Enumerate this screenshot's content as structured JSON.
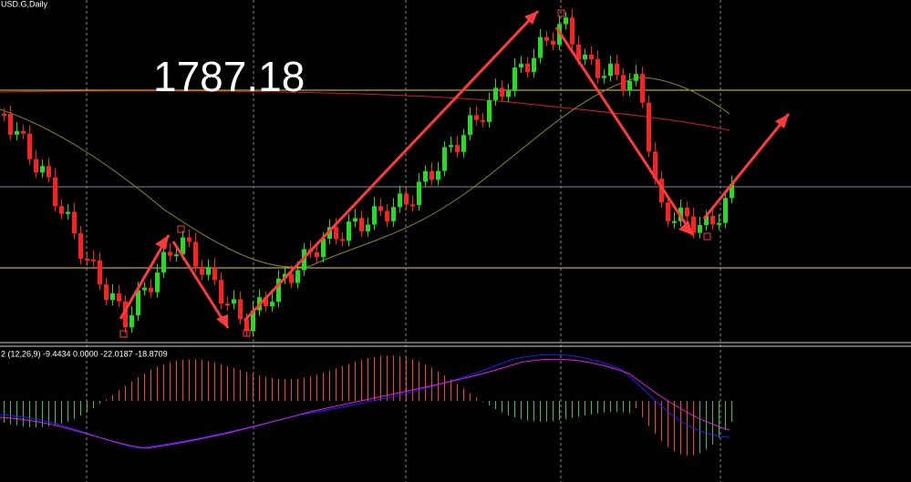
{
  "header": {
    "symbol": "USD.G,Daily"
  },
  "price_label": "1787.18",
  "indicator": {
    "label": "2 (12,26,9) -9.4434 0.0000 -22.0187 -18.8709"
  }
}
